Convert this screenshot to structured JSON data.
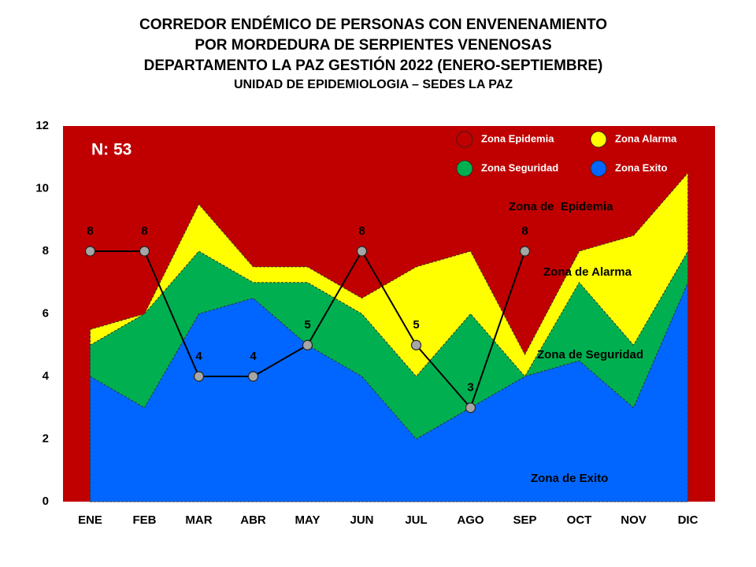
{
  "chart_data": {
    "type": "area",
    "title": [
      "CORREDOR ENDÉMICO DE PERSONAS CON ENVENENAMIENTO",
      "POR MORDEDURA DE SERPIENTES VENENOSAS",
      "DEPARTAMENTO  LA PAZ GESTIÓN 2022 (ENERO-SEPTIEMBRE)",
      "UNIDAD DE EPIDEMIOLOGIA – SEDES LA PAZ"
    ],
    "categories": [
      "ENE",
      "FEB",
      "MAR",
      "ABR",
      "MAY",
      "JUN",
      "JUL",
      "AGO",
      "SEP",
      "OCT",
      "NOV",
      "DIC"
    ],
    "series": [
      {
        "name": "Zona Epidemia",
        "color": "#c00000",
        "values": [
          12,
          12,
          12,
          12,
          12,
          12,
          12,
          12,
          12,
          12,
          12,
          12
        ]
      },
      {
        "name": "Zona Alarma",
        "color": "#ffff00",
        "values": [
          5.5,
          6,
          9.5,
          7.5,
          7.5,
          6.5,
          7.5,
          8,
          4.7,
          8,
          8.5,
          10.5
        ]
      },
      {
        "name": "Zona Seguridad",
        "color": "#00b050",
        "values": [
          5,
          6,
          8,
          7,
          7,
          6,
          4,
          6,
          4,
          7,
          5,
          8
        ]
      },
      {
        "name": "Zona Exito",
        "color": "#0066ff",
        "values": [
          4,
          3,
          6,
          6.5,
          5,
          4,
          2,
          3,
          4,
          4.5,
          3,
          7
        ]
      }
    ],
    "line": {
      "color": "#000000",
      "marker_color": "#a6a6a6",
      "values": [
        8,
        8,
        4,
        4,
        5,
        8,
        5,
        3,
        8,
        null,
        null,
        null
      ]
    },
    "annotations": [
      "N: 53",
      "Zona de  Epidemia",
      "Zona de Alarma",
      "Zona de Seguridad",
      "Zona de Exito"
    ],
    "ylim": [
      0,
      12
    ],
    "yticks": [
      0,
      2,
      4,
      6,
      8,
      10,
      12
    ]
  }
}
